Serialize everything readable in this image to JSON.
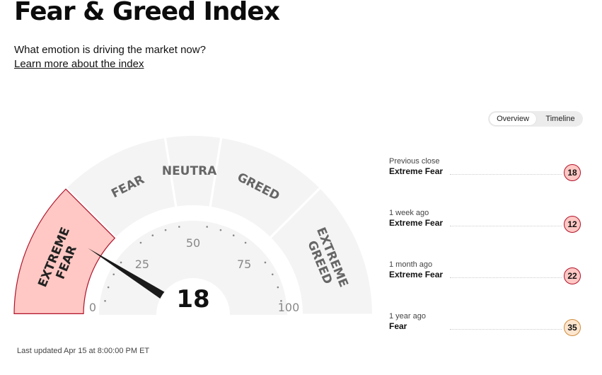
{
  "page": {
    "title": "Fear & Greed Index",
    "subtitle": "What emotion is driving the market now?",
    "learn_more": "Learn more about the index"
  },
  "view_toggle": {
    "options": [
      "Overview",
      "Timeline"
    ],
    "selected": "Overview"
  },
  "gauge": {
    "value": 18,
    "value_label": "18",
    "min": 0,
    "max": 100,
    "tick_labels": [
      "0",
      "25",
      "50",
      "75",
      "100"
    ],
    "segments": [
      {
        "label_lines": [
          "EXTREME",
          "FEAR"
        ],
        "from": 0,
        "to": 25,
        "active": true
      },
      {
        "label_lines": [
          "FEAR"
        ],
        "from": 25,
        "to": 45,
        "active": false
      },
      {
        "label_lines": [
          "NEUTRAL"
        ],
        "from": 45,
        "to": 55,
        "active": false
      },
      {
        "label_lines": [
          "GREED"
        ],
        "from": 55,
        "to": 75,
        "active": false
      },
      {
        "label_lines": [
          "EXTREME",
          "GREED"
        ],
        "from": 75,
        "to": 100,
        "active": false
      }
    ],
    "colors": {
      "segment_fill": "#f4f4f4",
      "active_fill": "#ffc8c4",
      "active_stroke": "#b0122a",
      "label": "#666666",
      "active_label": "#222222",
      "needle": "#1a1a1a"
    }
  },
  "history": [
    {
      "when": "Previous close",
      "rating": "Extreme Fear",
      "value": "18",
      "bg": "#ffc8c4",
      "border": "#b0122a"
    },
    {
      "when": "1 week ago",
      "rating": "Extreme Fear",
      "value": "12",
      "bg": "#ffc8c4",
      "border": "#b0122a"
    },
    {
      "when": "1 month ago",
      "rating": "Extreme Fear",
      "value": "22",
      "bg": "#ffc8c4",
      "border": "#b0122a"
    },
    {
      "when": "1 year ago",
      "rating": "Fear",
      "value": "35",
      "bg": "#fde6cf",
      "border": "#d08b3a"
    }
  ],
  "last_updated": "Last updated Apr 15 at 8:00:00 PM ET"
}
